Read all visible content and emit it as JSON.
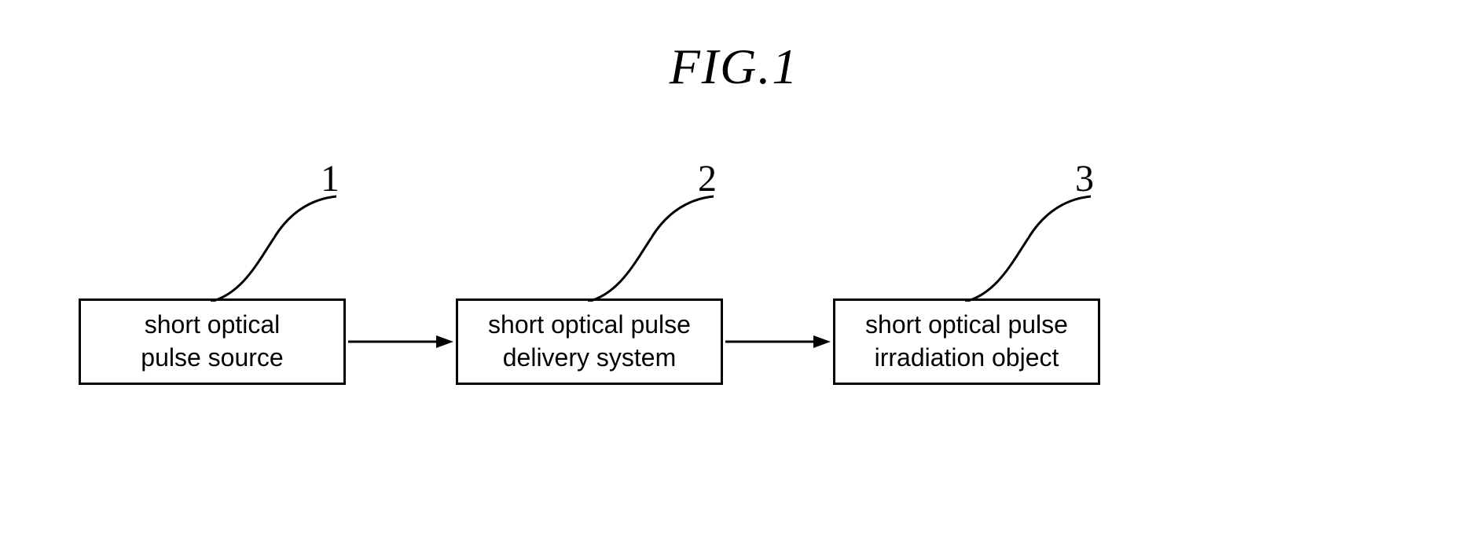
{
  "figure": {
    "title": "FIG.1",
    "title_fontsize": 64,
    "title_style": "italic",
    "background_color": "#ffffff",
    "stroke_color": "#000000",
    "box_border_width": 3,
    "box_font_size": 32,
    "callout_font_size": 48,
    "boxes": [
      {
        "id": 1,
        "label": "short optical\npulse source",
        "callout": "1"
      },
      {
        "id": 2,
        "label": "short optical pulse\ndelivery system",
        "callout": "2"
      },
      {
        "id": 3,
        "label": "short optical pulse\nirradiation object",
        "callout": "3"
      }
    ],
    "arrows": [
      {
        "from": 1,
        "to": 2
      },
      {
        "from": 2,
        "to": 3
      }
    ]
  }
}
